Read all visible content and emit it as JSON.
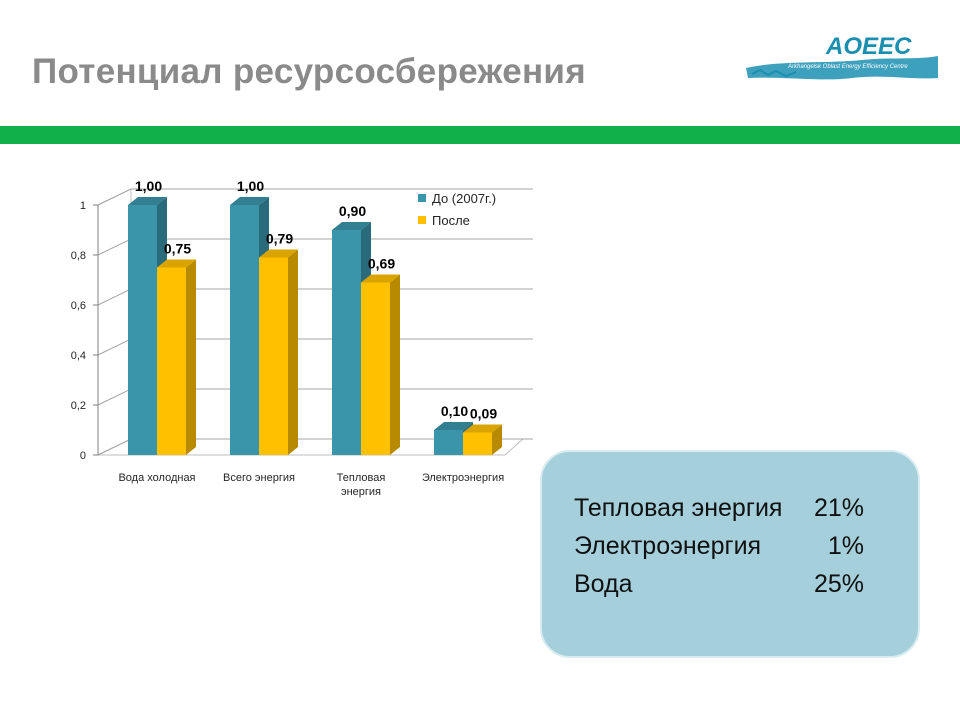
{
  "slide": {
    "title": "Потенциал ресурсосбережения"
  },
  "logo": {
    "name": "AOEEC",
    "tagline": "Arkhangelsk Oblast Energy Efficiency Centre",
    "color": "#1b8fb0"
  },
  "accent_bar_color": "#12b04a",
  "summary": [
    {
      "label": "Тепловая энергия",
      "percent": "21%"
    },
    {
      "label": "Электроэнергия",
      "percent": "1%"
    },
    {
      "label": "Вода",
      "percent": "25%"
    }
  ],
  "chart_data": {
    "type": "bar",
    "style": "3d-clustered-column",
    "categories": [
      "Вода холодная",
      "Всего энергия",
      "Тепловая энергия",
      "Электроэнергия"
    ],
    "series": [
      {
        "name": "До (2007г.)",
        "color": "#3a95ab",
        "values": [
          1.0,
          1.0,
          0.9,
          0.1
        ],
        "labels": [
          "1,00",
          "1,00",
          "0,90",
          "0,10"
        ]
      },
      {
        "name": "После",
        "color": "#ffc000",
        "values": [
          0.75,
          0.79,
          0.69,
          0.09
        ],
        "labels": [
          "0,75",
          "0,79",
          "0,69",
          "0,09"
        ]
      }
    ],
    "yticks": [
      "0",
      "0,2",
      "0,4",
      "0,6",
      "0,8",
      "1"
    ],
    "ylim": [
      0,
      1
    ],
    "grid": true,
    "legend": "top-right"
  }
}
